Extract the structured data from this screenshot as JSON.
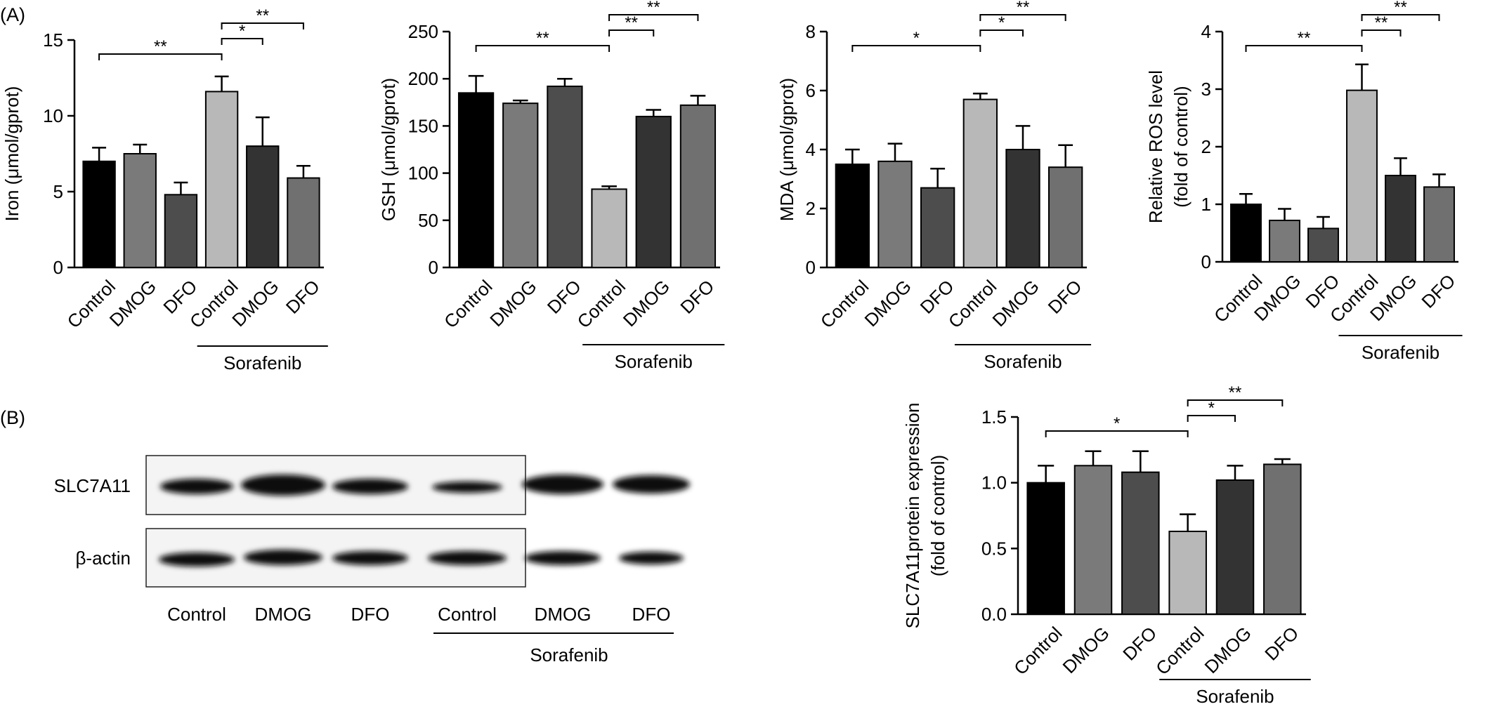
{
  "panel_labels": [
    "(A)",
    "(B)"
  ],
  "chart_data": [
    {
      "type": "bar",
      "ylabel": [
        "Iron (μmol/gprot)"
      ],
      "categories": [
        "Control",
        "DMOG",
        "DFO",
        "Control",
        "DMOG",
        "DFO"
      ],
      "group": {
        "label": "Sorafenib",
        "span": [
          3,
          5
        ]
      },
      "values": [
        7.0,
        7.5,
        4.8,
        11.6,
        8.0,
        5.9
      ],
      "errors": [
        0.9,
        0.6,
        0.8,
        1.0,
        1.9,
        0.8
      ],
      "colors": [
        "#000000",
        "#7a7a7a",
        "#4d4d4d",
        "#b8b8b8",
        "#333333",
        "#707070"
      ],
      "ylim": [
        0,
        15
      ],
      "yticks": [
        0,
        5,
        10,
        15
      ],
      "significance": [
        {
          "pair": [
            0,
            3
          ],
          "label": "**"
        },
        {
          "pair": [
            3,
            4
          ],
          "label": "*"
        },
        {
          "pair": [
            3,
            5
          ],
          "label": "**"
        }
      ]
    },
    {
      "type": "bar",
      "ylabel": [
        "GSH (μmol/gprot)"
      ],
      "categories": [
        "Control",
        "DMOG",
        "DFO",
        "Control",
        "DMOG",
        "DFO"
      ],
      "group": {
        "label": "Sorafenib",
        "span": [
          3,
          5
        ]
      },
      "values": [
        185,
        174,
        192,
        83,
        160,
        172
      ],
      "errors": [
        18,
        3,
        8,
        3,
        7,
        10
      ],
      "colors": [
        "#000000",
        "#7a7a7a",
        "#4d4d4d",
        "#b8b8b8",
        "#333333",
        "#707070"
      ],
      "ylim": [
        0,
        250
      ],
      "yticks": [
        0,
        50,
        100,
        150,
        200,
        250
      ],
      "significance": [
        {
          "pair": [
            0,
            3
          ],
          "label": "**"
        },
        {
          "pair": [
            3,
            4
          ],
          "label": "**"
        },
        {
          "pair": [
            3,
            5
          ],
          "label": "**"
        }
      ]
    },
    {
      "type": "bar",
      "ylabel": [
        "MDA  (μmol/gprot)"
      ],
      "categories": [
        "Control",
        "DMOG",
        "DFO",
        "Control",
        "DMOG",
        "DFO"
      ],
      "group": {
        "label": "Sorafenib",
        "span": [
          3,
          5
        ]
      },
      "values": [
        3.5,
        3.6,
        2.7,
        5.7,
        4.0,
        3.4
      ],
      "errors": [
        0.5,
        0.6,
        0.65,
        0.2,
        0.8,
        0.75
      ],
      "colors": [
        "#000000",
        "#7a7a7a",
        "#4d4d4d",
        "#b8b8b8",
        "#333333",
        "#707070"
      ],
      "ylim": [
        0,
        8
      ],
      "yticks": [
        0,
        2,
        4,
        6,
        8
      ],
      "significance": [
        {
          "pair": [
            0,
            3
          ],
          "label": "*"
        },
        {
          "pair": [
            3,
            4
          ],
          "label": "*"
        },
        {
          "pair": [
            3,
            5
          ],
          "label": "**"
        }
      ]
    },
    {
      "type": "bar",
      "ylabel": [
        "Relative ROS level",
        "(fold of control)"
      ],
      "categories": [
        "Control",
        "DMOG",
        "DFO",
        "Control",
        "DMOG",
        "DFO"
      ],
      "group": {
        "label": "Sorafenib",
        "span": [
          3,
          5
        ]
      },
      "values": [
        1.0,
        0.72,
        0.58,
        2.98,
        1.5,
        1.3
      ],
      "errors": [
        0.18,
        0.2,
        0.2,
        0.45,
        0.3,
        0.22
      ],
      "colors": [
        "#000000",
        "#7a7a7a",
        "#4d4d4d",
        "#b8b8b8",
        "#333333",
        "#707070"
      ],
      "ylim": [
        0,
        4
      ],
      "yticks": [
        0,
        1,
        2,
        3,
        4
      ],
      "significance": [
        {
          "pair": [
            0,
            3
          ],
          "label": "**"
        },
        {
          "pair": [
            3,
            4
          ],
          "label": "**"
        },
        {
          "pair": [
            3,
            5
          ],
          "label": "**"
        }
      ]
    },
    {
      "type": "bar",
      "ylabel": [
        "SLC7A11protein expression",
        "(fold of control)"
      ],
      "categories": [
        "Control",
        "DMOG",
        "DFO",
        "Control",
        "DMOG",
        "DFO"
      ],
      "group": {
        "label": "Sorafenib",
        "span": [
          3,
          5
        ]
      },
      "values": [
        1.0,
        1.13,
        1.08,
        0.63,
        1.02,
        1.14
      ],
      "errors": [
        0.13,
        0.11,
        0.16,
        0.13,
        0.11,
        0.04
      ],
      "colors": [
        "#000000",
        "#7a7a7a",
        "#4d4d4d",
        "#b8b8b8",
        "#333333",
        "#707070"
      ],
      "ylim": [
        0,
        1.5
      ],
      "yticks": [
        {
          "value": 0,
          "label": "0.0"
        },
        0.5,
        {
          "value": 1,
          "label": "1.0"
        },
        1.5
      ],
      "significance": [
        {
          "pair": [
            0,
            3
          ],
          "label": "*"
        },
        {
          "pair": [
            3,
            4
          ],
          "label": "*"
        },
        {
          "pair": [
            3,
            5
          ],
          "label": "**"
        }
      ]
    }
  ],
  "blot": {
    "rows": [
      "SLC7A11",
      "β-actin"
    ],
    "lanes": [
      "Control",
      "DMOG",
      "DFO",
      "Control",
      "DMOG",
      "DFO"
    ],
    "group": "Sorafenib"
  }
}
